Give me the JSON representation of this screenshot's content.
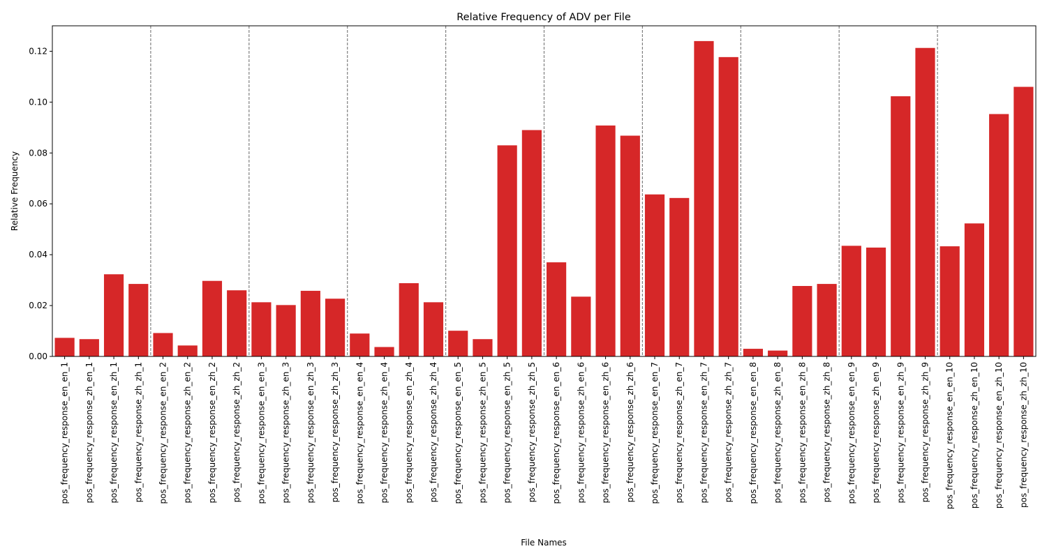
{
  "chart_data": {
    "type": "bar",
    "title": "Relative Frequency of ADV per File",
    "xlabel": "File Names",
    "ylabel": "Relative Frequency",
    "ylim": [
      0,
      0.13
    ],
    "yticks": [
      0.0,
      0.02,
      0.04,
      0.06,
      0.08,
      0.1,
      0.12
    ],
    "ytick_labels": [
      "0.00",
      "0.02",
      "0.04",
      "0.06",
      "0.08",
      "0.10",
      "0.12"
    ],
    "bar_color": "#d62728",
    "group_separator_color": "#808080",
    "group_size": 4,
    "grid": false,
    "categories": [
      "pos_frequency_response_en_en_1",
      "pos_frequency_response_zh_en_1",
      "pos_frequency_response_en_zh_1",
      "pos_frequency_response_zh_zh_1",
      "pos_frequency_response_en_en_2",
      "pos_frequency_response_zh_en_2",
      "pos_frequency_response_en_zh_2",
      "pos_frequency_response_zh_zh_2",
      "pos_frequency_response_en_en_3",
      "pos_frequency_response_zh_en_3",
      "pos_frequency_response_en_zh_3",
      "pos_frequency_response_zh_zh_3",
      "pos_frequency_response_en_en_4",
      "pos_frequency_response_zh_en_4",
      "pos_frequency_response_en_zh_4",
      "pos_frequency_response_zh_zh_4",
      "pos_frequency_response_en_en_5",
      "pos_frequency_response_zh_en_5",
      "pos_frequency_response_en_zh_5",
      "pos_frequency_response_zh_zh_5",
      "pos_frequency_response_en_en_6",
      "pos_frequency_response_zh_en_6",
      "pos_frequency_response_en_zh_6",
      "pos_frequency_response_zh_zh_6",
      "pos_frequency_response_en_en_7",
      "pos_frequency_response_zh_en_7",
      "pos_frequency_response_en_zh_7",
      "pos_frequency_response_zh_zh_7",
      "pos_frequency_response_en_en_8",
      "pos_frequency_response_zh_en_8",
      "pos_frequency_response_en_zh_8",
      "pos_frequency_response_zh_zh_8",
      "pos_frequency_response_en_en_9",
      "pos_frequency_response_zh_en_9",
      "pos_frequency_response_en_zh_9",
      "pos_frequency_response_zh_zh_9",
      "pos_frequency_response_en_en_10",
      "pos_frequency_response_zh_en_10",
      "pos_frequency_response_en_zh_10",
      "pos_frequency_response_zh_zh_10"
    ],
    "values": [
      0.0073,
      0.0068,
      0.0323,
      0.0285,
      0.0092,
      0.0043,
      0.0297,
      0.026,
      0.0213,
      0.0202,
      0.0258,
      0.0227,
      0.009,
      0.0037,
      0.0288,
      0.0213,
      0.0101,
      0.0068,
      0.083,
      0.089,
      0.037,
      0.0235,
      0.0908,
      0.0868,
      0.0637,
      0.0623,
      0.124,
      0.1177,
      0.003,
      0.0023,
      0.0277,
      0.0285,
      0.0435,
      0.0428,
      0.1023,
      0.1213,
      0.0433,
      0.0523,
      0.0953,
      0.106
    ]
  }
}
